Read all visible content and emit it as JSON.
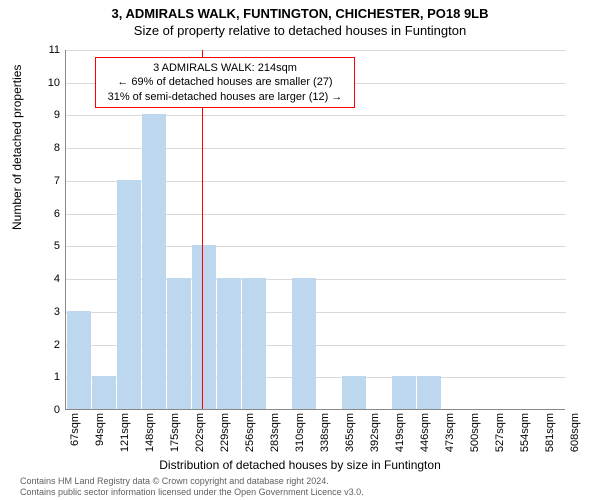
{
  "header": {
    "address": "3, ADMIRALS WALK, FUNTINGTON, CHICHESTER, PO18 9LB",
    "subtitle": "Size of property relative to detached houses in Funtington"
  },
  "chart": {
    "type": "histogram",
    "ymax": 11,
    "ytick_step": 1,
    "ylabel": "Number of detached properties",
    "xlabel": "Distribution of detached houses by size in Funtington",
    "bar_color": "#bdd7ee",
    "grid_color": "#d9d9d9",
    "axis_color": "#888888",
    "background_color": "#ffffff",
    "reference_line": {
      "value": 214,
      "color": "#ff0000"
    },
    "categories": [
      "67sqm",
      "94sqm",
      "121sqm",
      "148sqm",
      "175sqm",
      "202sqm",
      "229sqm",
      "256sqm",
      "283sqm",
      "310sqm",
      "338sqm",
      "365sqm",
      "392sqm",
      "419sqm",
      "446sqm",
      "473sqm",
      "500sqm",
      "527sqm",
      "554sqm",
      "581sqm",
      "608sqm"
    ],
    "values": [
      3,
      1,
      7,
      9,
      4,
      5,
      4,
      4,
      0,
      4,
      0,
      1,
      0,
      1,
      1,
      0,
      0,
      0,
      0,
      0
    ],
    "label_fontsize": 11,
    "title_fontsize": 13
  },
  "annotation": {
    "line1": "3 ADMIRALS WALK: 214sqm",
    "line2": "← 69% of detached houses are smaller (27)",
    "line3": "31% of semi-detached houses are larger (12) →",
    "border_color": "#ff0000"
  },
  "footer": {
    "line1": "Contains HM Land Registry data © Crown copyright and database right 2024.",
    "line2": "Contains public sector information licensed under the Open Government Licence v3.0."
  }
}
